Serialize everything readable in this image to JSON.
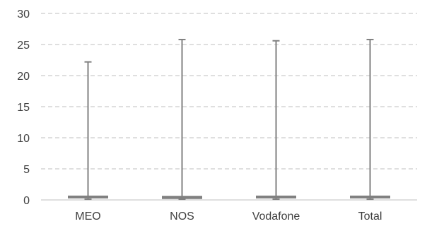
{
  "chart_data": {
    "type": "boxplot",
    "categories": [
      "MEO",
      "NOS",
      "Vodafone",
      "Total"
    ],
    "series": [
      {
        "values": [
          {
            "min": 0.1,
            "q1": 0.3,
            "median": 0.4,
            "q3": 0.6,
            "max": 22.2
          },
          {
            "min": 0.1,
            "q1": 0.2,
            "median": 0.4,
            "q3": 0.6,
            "max": 25.8
          },
          {
            "min": 0.1,
            "q1": 0.3,
            "median": 0.4,
            "q3": 0.6,
            "max": 25.6
          },
          {
            "min": 0.1,
            "q1": 0.3,
            "median": 0.4,
            "q3": 0.6,
            "max": 25.8
          }
        ]
      }
    ],
    "y_ticks": [
      "0",
      "5",
      "10",
      "15",
      "20",
      "25",
      "30"
    ],
    "ylim": [
      0,
      30
    ],
    "grid": true,
    "color": "#808080",
    "grid_color": "#bfbfbf"
  }
}
